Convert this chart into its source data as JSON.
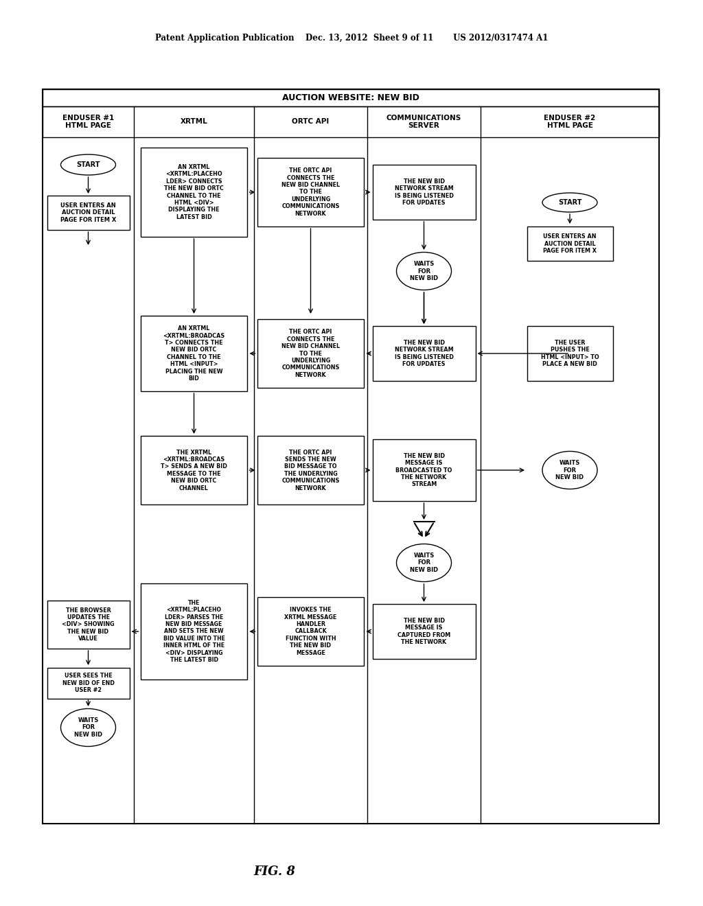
{
  "title": "Patent Application Publication    Dec. 13, 2012  Sheet 9 of 11       US 2012/0317474 A1",
  "fig_label": "FIG. 8",
  "diagram_title": "AUCTION WEBSITE: NEW BID",
  "columns": [
    "ENDUSER #1\nHTML PAGE",
    "XRTML",
    "ORTC API",
    "COMMUNICATIONS\nSERVER",
    "ENDUSER #2\nHTML PAGE"
  ],
  "bg_color": "#ffffff",
  "box_color": "#ffffff",
  "border_color": "#000000"
}
